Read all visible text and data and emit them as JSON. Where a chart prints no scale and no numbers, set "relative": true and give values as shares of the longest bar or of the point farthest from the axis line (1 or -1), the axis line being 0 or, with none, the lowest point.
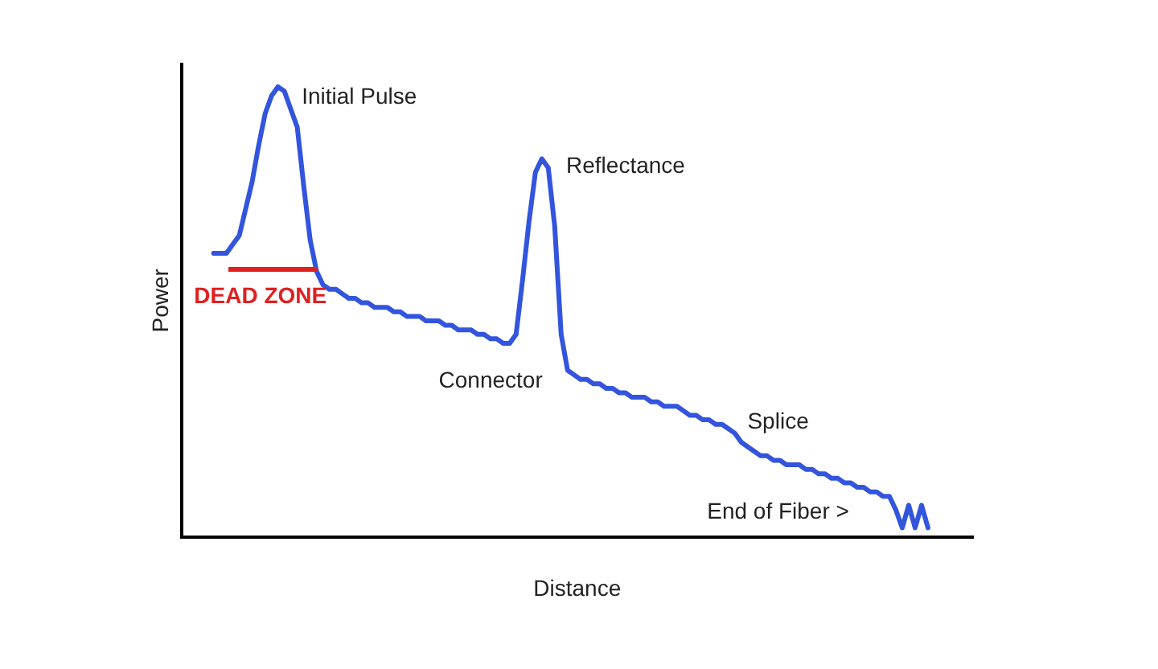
{
  "chart_data": {
    "type": "line",
    "relative": true,
    "xlabel": "Distance",
    "ylabel": "Power",
    "grid": false,
    "legend": false,
    "marker": "none",
    "line_style": "solid",
    "categories": [
      null,
      null,
      null,
      null,
      null,
      null,
      null,
      null,
      null,
      null,
      null,
      null,
      null,
      null,
      null,
      null,
      null,
      null,
      null,
      null,
      null,
      null,
      null,
      null,
      null,
      null,
      null,
      null,
      null,
      null,
      null,
      null,
      null,
      null,
      null,
      null,
      null,
      null,
      null,
      null,
      null,
      null,
      null,
      null,
      null,
      null,
      null,
      null,
      null,
      null,
      null,
      null,
      null,
      null,
      null,
      null,
      null,
      null,
      null,
      null,
      null,
      null,
      null,
      null,
      null,
      null,
      null,
      null,
      null,
      null,
      null,
      null,
      null,
      null,
      null,
      null,
      null,
      null,
      null,
      null,
      null,
      null,
      null,
      null,
      null,
      null,
      null,
      null,
      null,
      null,
      null,
      null,
      null,
      null,
      null,
      null,
      null,
      null,
      null,
      null,
      null,
      null,
      null,
      null,
      null,
      null,
      null,
      null,
      null,
      null,
      null,
      null,
      null,
      null,
      null,
      null,
      null,
      null,
      null,
      null,
      null,
      null,
      null,
      null
    ],
    "series": [
      {
        "color": "#3355dd",
        "values": [
          null,
          null,
          null,
          null,
          null,
          0.63,
          0.63,
          0.63,
          0.65,
          0.67,
          0.73,
          0.79,
          0.87,
          0.94,
          0.98,
          1,
          0.99,
          0.95,
          0.91,
          0.78,
          0.66,
          0.59,
          0.56,
          0.55,
          0.55,
          0.54,
          0.53,
          0.53,
          0.52,
          0.52,
          0.51,
          0.51,
          0.51,
          0.5,
          0.5,
          0.49,
          0.49,
          0.49,
          0.48,
          0.48,
          0.48,
          0.47,
          0.47,
          0.46,
          0.46,
          0.46,
          0.45,
          0.45,
          0.44,
          0.44,
          0.43,
          0.43,
          0.45,
          0.57,
          0.7,
          0.81,
          0.84,
          0.82,
          0.69,
          0.45,
          0.37,
          0.36,
          0.35,
          0.35,
          0.34,
          0.34,
          0.33,
          0.33,
          0.32,
          0.32,
          0.31,
          0.31,
          0.31,
          0.3,
          0.3,
          0.29,
          0.29,
          0.29,
          0.28,
          0.27,
          0.27,
          0.26,
          0.26,
          0.25,
          0.25,
          0.24,
          0.23,
          0.21,
          0.2,
          0.19,
          0.18,
          0.18,
          0.17,
          0.17,
          0.16,
          0.16,
          0.16,
          0.15,
          0.15,
          0.14,
          0.14,
          0.13,
          0.13,
          0.12,
          0.12,
          0.11,
          0.11,
          0.1,
          0.1,
          0.09,
          0.09,
          0.06,
          0.02,
          0.07,
          0.02,
          0.07,
          0.02,
          null,
          null,
          null,
          null,
          null,
          null,
          null
        ]
      }
    ],
    "annotations": [
      "Initial Pulse",
      "Reflectance",
      "Connector",
      "Splice",
      "End of Fiber >",
      "DEAD ZONE"
    ]
  }
}
